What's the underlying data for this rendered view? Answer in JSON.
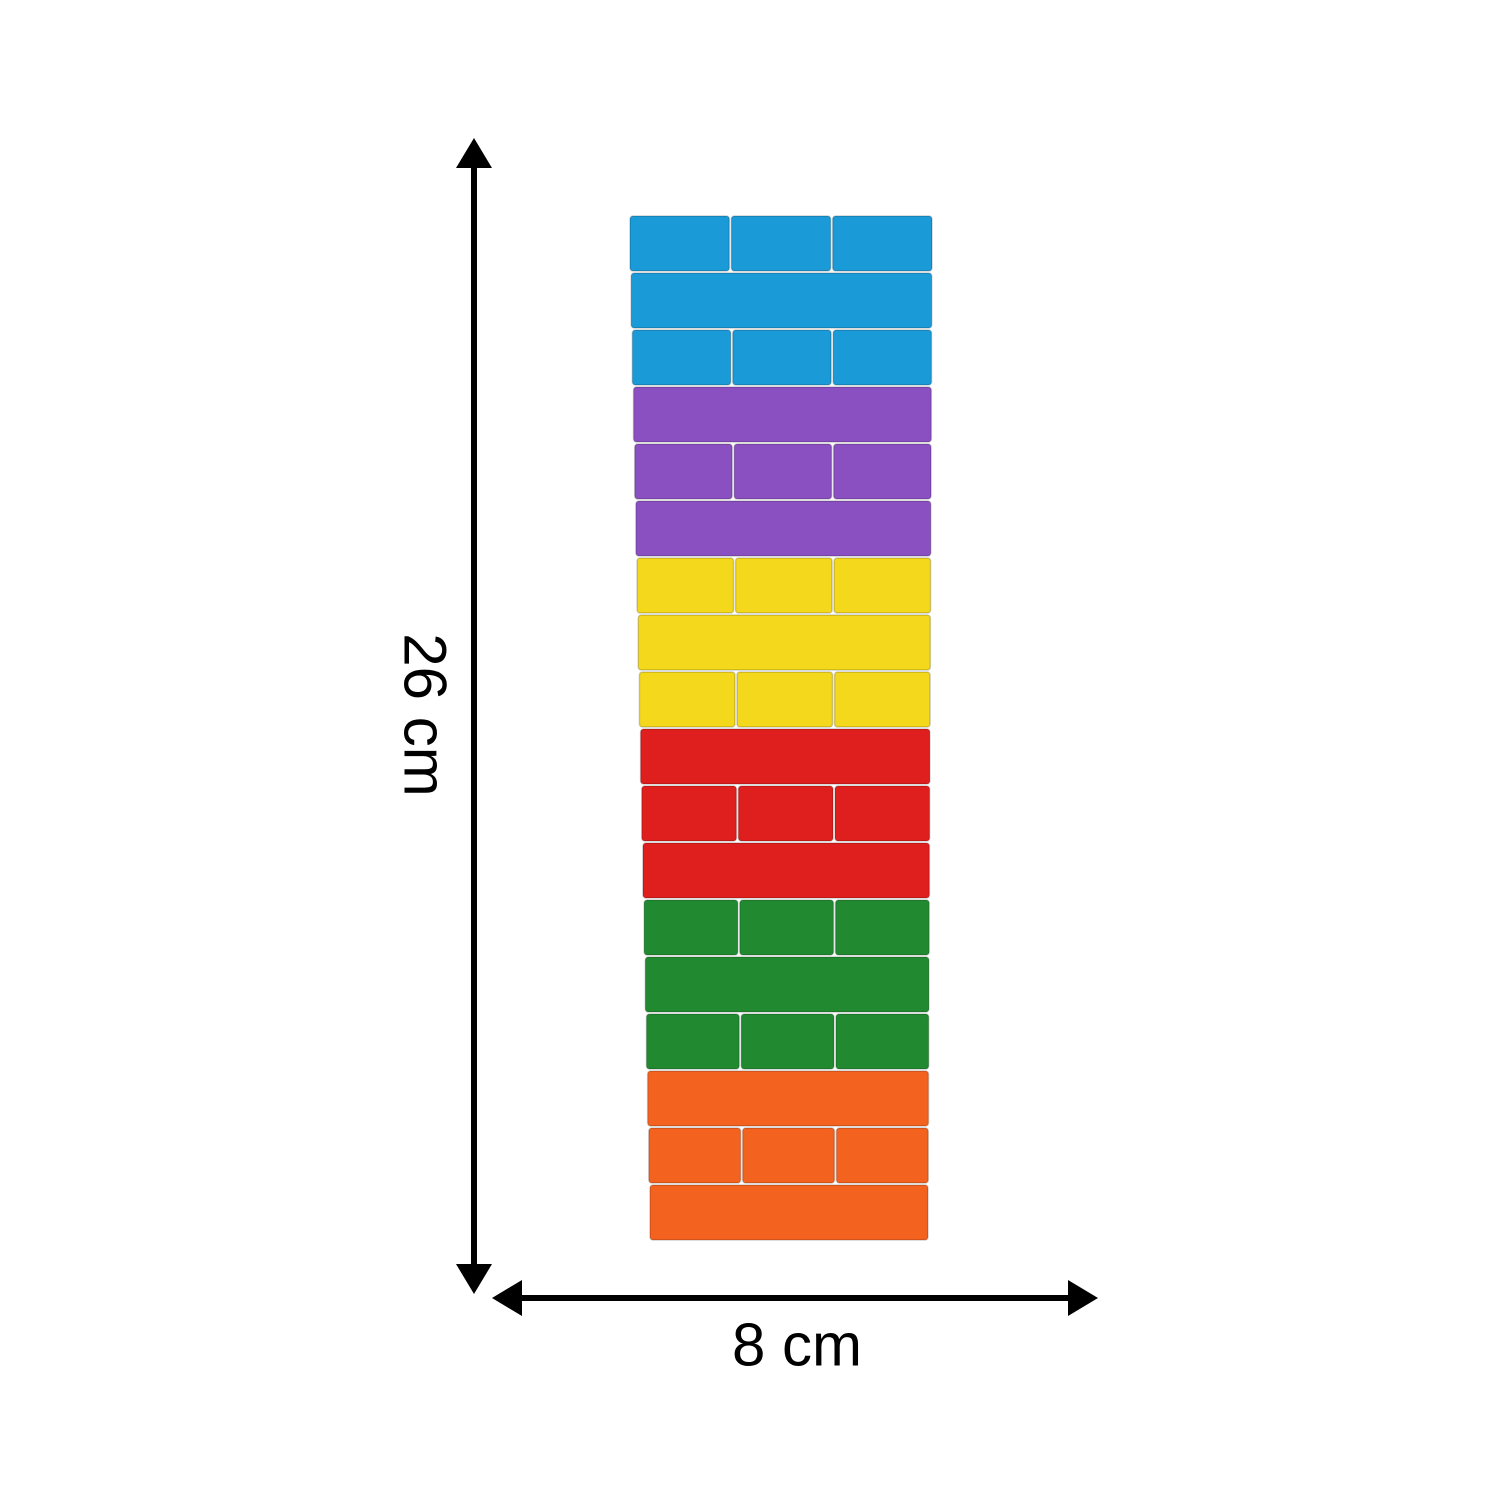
{
  "dimensions": {
    "height_label": "26 cm",
    "width_label": "8 cm"
  },
  "tower": {
    "rows": [
      {
        "color": "blue",
        "pattern": "three"
      },
      {
        "color": "blue",
        "pattern": "long"
      },
      {
        "color": "blue",
        "pattern": "three"
      },
      {
        "color": "purple",
        "pattern": "long"
      },
      {
        "color": "purple",
        "pattern": "three"
      },
      {
        "color": "purple",
        "pattern": "long"
      },
      {
        "color": "yellow",
        "pattern": "three"
      },
      {
        "color": "yellow",
        "pattern": "long"
      },
      {
        "color": "yellow",
        "pattern": "three"
      },
      {
        "color": "red",
        "pattern": "long"
      },
      {
        "color": "red",
        "pattern": "three"
      },
      {
        "color": "red",
        "pattern": "long"
      },
      {
        "color": "green",
        "pattern": "three"
      },
      {
        "color": "green",
        "pattern": "long"
      },
      {
        "color": "green",
        "pattern": "three"
      },
      {
        "color": "orange",
        "pattern": "long"
      },
      {
        "color": "orange",
        "pattern": "three"
      },
      {
        "color": "orange",
        "pattern": "long"
      }
    ],
    "colors": {
      "blue": "#1b9ad8",
      "purple": "#8a4fc0",
      "yellow": "#f3d81c",
      "red": "#de1f1d",
      "green": "#218a30",
      "orange": "#f4621f"
    }
  }
}
